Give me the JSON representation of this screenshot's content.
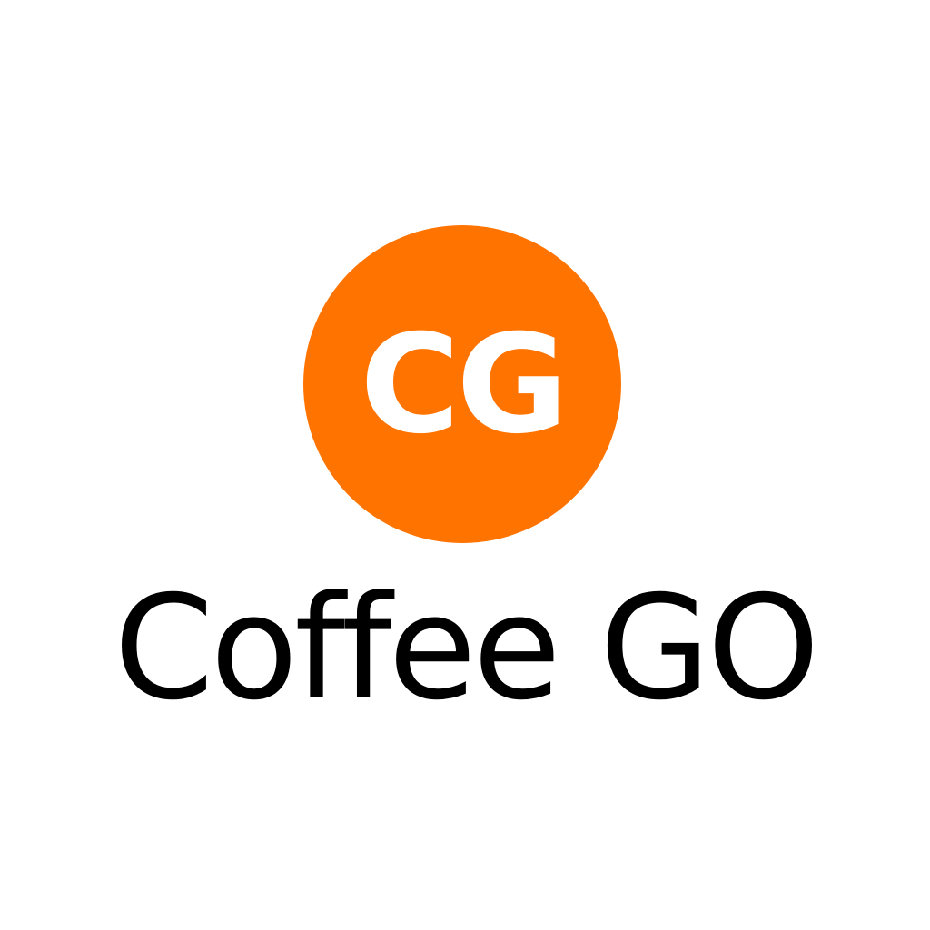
{
  "logo": {
    "monogram": "CG",
    "badge_color": "#ff7300",
    "monogram_color": "#ffffff"
  },
  "brand": {
    "name": "Coffee GO",
    "text_color": "#000000"
  },
  "background_color": "#ffffff"
}
